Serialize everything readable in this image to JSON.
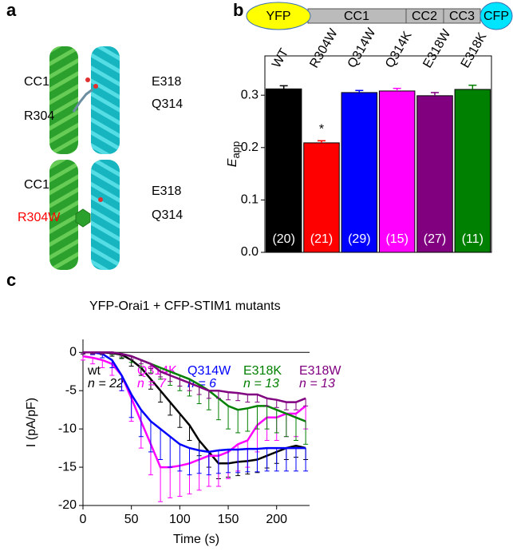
{
  "panel_labels": [
    "a",
    "b",
    "c"
  ],
  "structure_labels": {
    "top": [
      "CC1",
      "R304",
      "E318",
      "Q314"
    ],
    "bottom": [
      "CC1",
      "R304W",
      "E318",
      "Q314"
    ]
  },
  "construct": [
    "YFP",
    "CC1",
    "CC2",
    "CC3",
    "CFP"
  ],
  "chart_data": [
    {
      "type": "bar",
      "categories": [
        "WT",
        "R304W",
        "Q314W",
        "Q314K",
        "E318W",
        "E318K"
      ],
      "values": [
        0.312,
        0.209,
        0.305,
        0.308,
        0.299,
        0.311
      ],
      "errors": [
        0.006,
        0.004,
        0.004,
        0.005,
        0.006,
        0.008
      ],
      "colors": [
        "#000000",
        "#ff0000",
        "#0000ff",
        "#ff00ff",
        "#800080",
        "#008000"
      ],
      "n_labels": [
        "(20)",
        "(21)",
        "(29)",
        "(15)",
        "(27)",
        "(11)"
      ],
      "annotation": {
        "text": "*",
        "category": "R304W"
      },
      "ylabel": "E",
      "ylabel_subscript": "app",
      "ylim": [
        0,
        0.375
      ],
      "yticks": [
        {
          "value": 0,
          "label": "0.0"
        },
        0.1,
        0.2,
        0.3
      ]
    },
    {
      "type": "line",
      "title": "YFP-Orai1 + CFP-STIM1 mutants",
      "xlabel": "Time (s)",
      "ylabel": "I (pA/pF)",
      "x": [
        0,
        10,
        20,
        30,
        40,
        50,
        60,
        70,
        80,
        90,
        100,
        110,
        120,
        130,
        140,
        150,
        160,
        170,
        180,
        190,
        200,
        210,
        220,
        230
      ],
      "series": [
        {
          "name": "wt",
          "n_label": "n = 22",
          "color": "#000000",
          "values": [
            0,
            0,
            0,
            -0.1,
            -0.3,
            -1,
            -2,
            -3.5,
            -5,
            -6.5,
            -8,
            -9.5,
            -11.5,
            -13,
            -14.5,
            -14.5,
            -14.3,
            -14.2,
            -14,
            -13.5,
            -13,
            -12.5,
            -12.2,
            -12.5
          ],
          "errors": [
            0.2,
            0.2,
            0.3,
            0.4,
            0.5,
            0.8,
            1,
            1.3,
            1.5,
            1.7,
            1.8,
            2,
            2,
            2,
            2,
            1.8,
            1.8,
            1.7,
            1.7,
            1.6,
            1.5,
            1.5,
            1.5,
            1.5
          ]
        },
        {
          "name": "Q314K",
          "n_label": "n = 7",
          "color": "#ff00ff",
          "values": [
            -0.5,
            -0.7,
            -1,
            -1.5,
            -3,
            -6,
            -9,
            -12,
            -15,
            -15,
            -14.8,
            -14.5,
            -14,
            -13.5,
            -13.5,
            -13,
            -12,
            -11.5,
            -9.5,
            -8.5,
            -8.5,
            -8,
            -8,
            -7
          ],
          "errors": [
            0.5,
            0.8,
            1,
            1.5,
            2,
            3,
            3.5,
            4,
            4.5,
            4,
            4,
            4,
            4,
            4,
            4,
            3.5,
            3.5,
            3.5,
            3.5,
            3,
            3,
            3,
            3,
            3
          ]
        },
        {
          "name": "Q314W",
          "n_label": "n = 6",
          "color": "#0000ff",
          "values": [
            0,
            0,
            -0.2,
            -1,
            -3,
            -5.5,
            -7.5,
            -9,
            -10,
            -11,
            -12,
            -12.5,
            -12.8,
            -13,
            -12.8,
            -12.7,
            -12.7,
            -12.6,
            -12.6,
            -12.5,
            -12.5,
            -12.5,
            -12.5,
            -12.5
          ],
          "errors": [
            0.2,
            0.3,
            0.5,
            1,
            2,
            3,
            3.5,
            4,
            4,
            4,
            3.5,
            3.5,
            3,
            3,
            3,
            3,
            3,
            3,
            3,
            3,
            3,
            3,
            3,
            3
          ]
        },
        {
          "name": "E318K",
          "n_label": "n = 13",
          "color": "#008000",
          "values": [
            0,
            0,
            0,
            0,
            -0.2,
            -0.5,
            -1,
            -1.5,
            -2,
            -2.5,
            -3,
            -3.5,
            -4.2,
            -5,
            -6,
            -7,
            -7.5,
            -7.3,
            -7,
            -7,
            -7.5,
            -8,
            -8.5,
            -9
          ],
          "errors": [
            0.2,
            0.2,
            0.2,
            0.3,
            0.5,
            0.8,
            1,
            1.2,
            1.5,
            1.8,
            2,
            2.2,
            2.5,
            2.5,
            2.8,
            3,
            3,
            3,
            3,
            3,
            3,
            3,
            3,
            3
          ]
        },
        {
          "name": "E318W",
          "n_label": "n = 13",
          "color": "#800080",
          "values": [
            0,
            0,
            0,
            0,
            -0.2,
            -0.5,
            -1,
            -1.5,
            -2.5,
            -3,
            -3.5,
            -4,
            -4.5,
            -5,
            -5,
            -5.2,
            -5.3,
            -5.5,
            -5.5,
            -6,
            -6.2,
            -6.5,
            -6.5,
            -6
          ],
          "errors": [
            0.2,
            0.2,
            0.2,
            0.2,
            0.3,
            0.4,
            0.5,
            0.6,
            0.7,
            0.8,
            0.9,
            1,
            1,
            1,
            1,
            1,
            1,
            1,
            1,
            1,
            1,
            1,
            1,
            1
          ]
        }
      ],
      "xlim": [
        0,
        234
      ],
      "ylim": [
        -20,
        1.7
      ],
      "xticks": [
        0,
        50,
        100,
        150,
        200
      ],
      "yticks": [
        0,
        -5,
        -10,
        -15,
        -20
      ]
    }
  ]
}
